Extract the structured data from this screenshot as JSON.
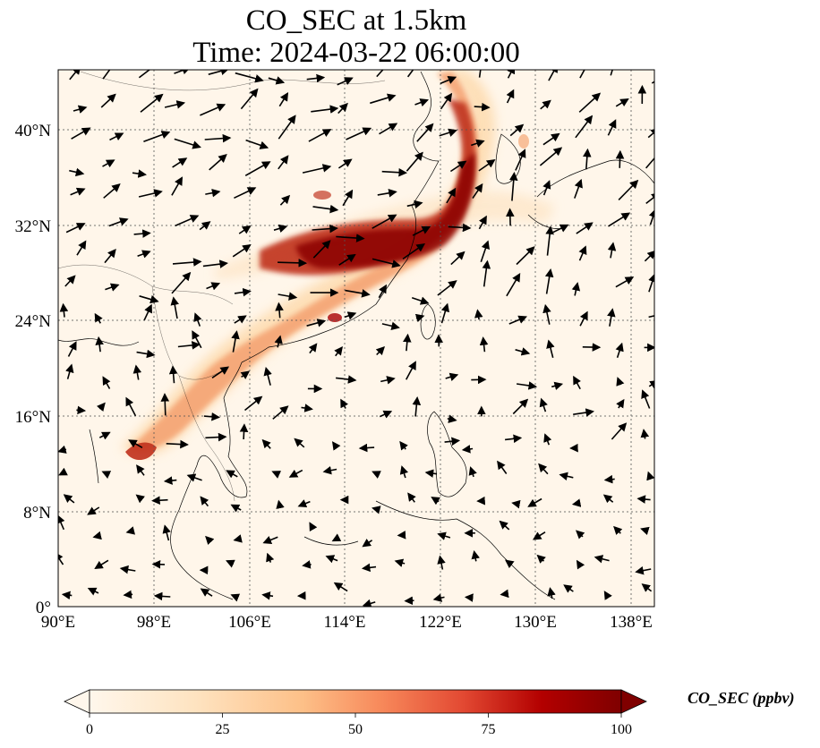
{
  "title_line1": "CO_SEC at 1.5km",
  "title_line2": "Time: 2024-03-22 06:00:00",
  "axes": {
    "lon_ticks": [
      "90°E",
      "98°E",
      "106°E",
      "114°E",
      "122°E",
      "130°E",
      "138°E"
    ],
    "lat_ticks": [
      "0°",
      "8°N",
      "16°N",
      "24°N",
      "32°N",
      "40°N"
    ],
    "lon_range": [
      90,
      140
    ],
    "lat_range": [
      0,
      45
    ]
  },
  "colorbar": {
    "label": "CO_SEC (ppbv)",
    "ticks": [
      "0",
      "25",
      "50",
      "75",
      "100"
    ],
    "range": [
      0,
      100
    ],
    "extend": "both",
    "colormap": "OrRd"
  },
  "plume_path_lonlat": [
    [
      98,
      13
    ],
    [
      101,
      16
    ],
    [
      104,
      19
    ],
    [
      108,
      22
    ],
    [
      112,
      25
    ],
    [
      116,
      28
    ],
    [
      120,
      31
    ],
    [
      123,
      34
    ],
    [
      125,
      38
    ],
    [
      125,
      43
    ]
  ]
}
